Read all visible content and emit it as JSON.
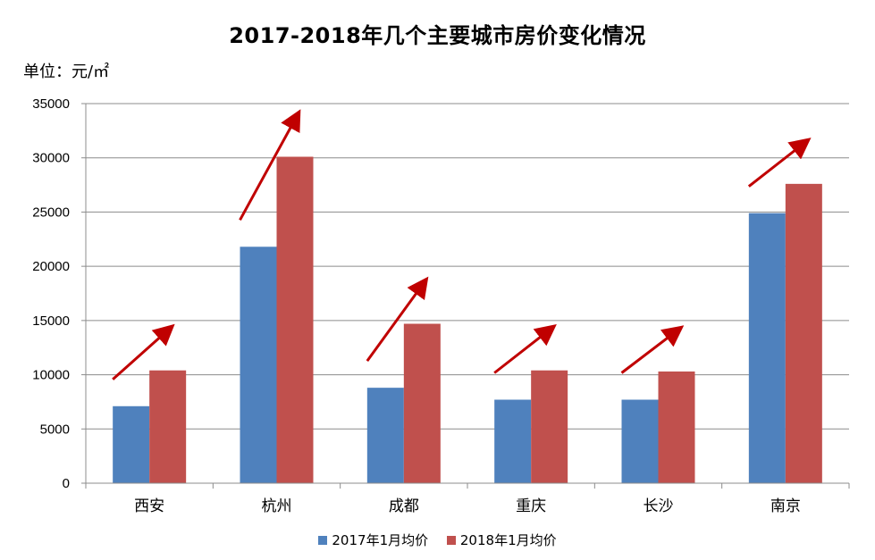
{
  "unit_label": "单位：元/㎡",
  "chart_data": {
    "type": "bar",
    "title": "2017-2018年几个主要城市房价变化情况",
    "categories": [
      "西安",
      "杭州",
      "成都",
      "重庆",
      "长沙",
      "南京"
    ],
    "series": [
      {
        "name": "2017年1月均价",
        "color": "#4f81bd",
        "values": [
          7100,
          21800,
          8800,
          7700,
          7700,
          24900
        ]
      },
      {
        "name": "2018年1月均价",
        "color": "#c0504d",
        "values": [
          10400,
          30100,
          14700,
          10400,
          10300,
          27600
        ]
      }
    ],
    "ylim": [
      0,
      35000
    ],
    "yticks": [
      0,
      5000,
      10000,
      15000,
      20000,
      25000,
      30000,
      35000
    ],
    "grid": true,
    "legend_position": "bottom",
    "annotations": "dark red upward arrows over each city's bars",
    "arrow_color": "#c00000"
  }
}
